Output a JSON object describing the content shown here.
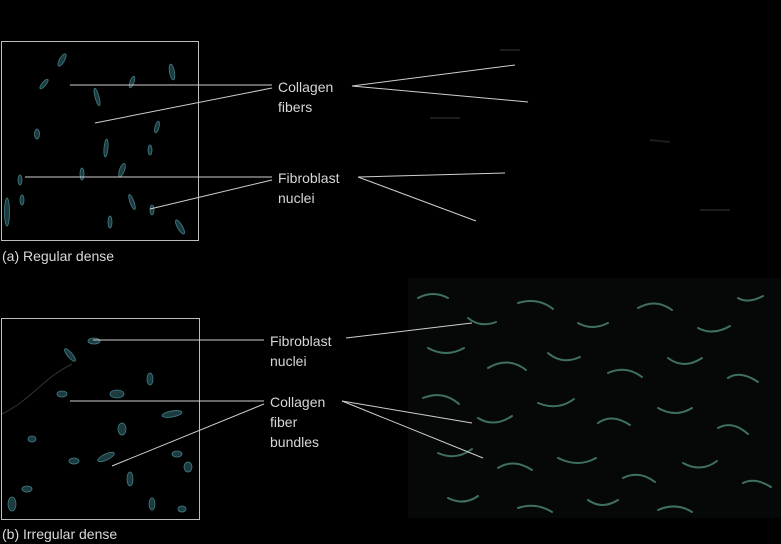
{
  "captions": {
    "regular": "(a) Regular dense",
    "irregular": "(b) Irregular dense"
  },
  "labels": {
    "a_collagen": [
      "Collagen",
      "fibers"
    ],
    "a_fibroblast": [
      "Fibroblast",
      "nuclei"
    ],
    "b_fibroblast": [
      "Fibroblast",
      "nuclei"
    ],
    "b_collagen": [
      "Collagen",
      "fiber",
      "bundles"
    ]
  },
  "colors": {
    "background": "#000000",
    "frame": "#bdbdbd",
    "leader": "#cfcfcf",
    "nucleus_fill": "#1d3a3f",
    "nucleus_stroke": "#3f7f86",
    "fiber": "#5b8f7a"
  }
}
